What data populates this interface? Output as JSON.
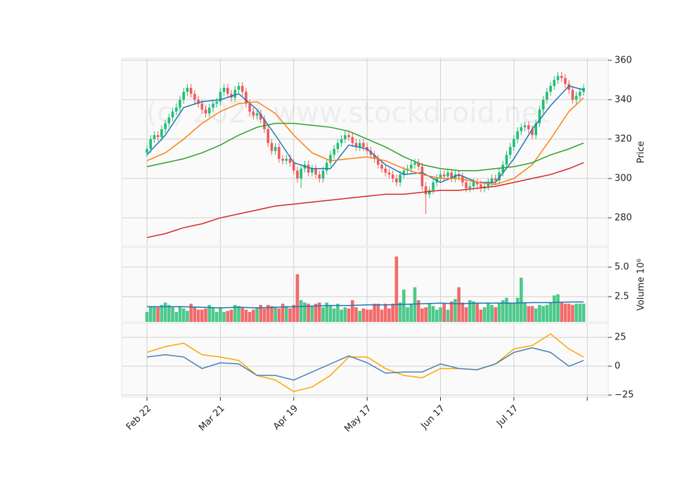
{
  "chart_data": [
    {
      "type": "candlestick",
      "ylabel": "Price",
      "watermark": "(c) 2024 www.stockdroid.net",
      "up_color": "#1fbf73",
      "down_color": "#f05a5a",
      "grid": true,
      "xlim": [
        -6.9,
        125.7
      ],
      "ylim": [
        265.7,
        361
      ],
      "yticks": [
        280,
        300,
        320,
        340,
        360
      ],
      "open": [
        313,
        315,
        320,
        322,
        321,
        325,
        328,
        331,
        334,
        336,
        340,
        344,
        346,
        343,
        340,
        338,
        335,
        333,
        336,
        338,
        339,
        344,
        346,
        343,
        341,
        345,
        347,
        344,
        338,
        334,
        332,
        333,
        330,
        325,
        318,
        314,
        316,
        310,
        309,
        310,
        308,
        304,
        300,
        305,
        307,
        303,
        305,
        302,
        300,
        304,
        308,
        312,
        315,
        318,
        320,
        322,
        321,
        318,
        316,
        318,
        316,
        314,
        312,
        310,
        307,
        305,
        303,
        302,
        300,
        298,
        302,
        304,
        305,
        307,
        308,
        306,
        296,
        292,
        294,
        298,
        300,
        302,
        301,
        303,
        300,
        302,
        301,
        298,
        295,
        296,
        298,
        297,
        295,
        296,
        298,
        300,
        299,
        303,
        307,
        312,
        316,
        320,
        324,
        326,
        327,
        325,
        322,
        328,
        335,
        340,
        344,
        347,
        350,
        352,
        351,
        348,
        345,
        340,
        342,
        344
      ],
      "high": [
        317,
        322,
        324,
        324,
        327,
        330,
        333,
        336,
        338,
        342,
        346,
        348,
        348,
        345,
        342,
        340,
        337,
        338,
        340,
        341,
        346,
        348,
        348,
        345,
        347,
        349,
        349,
        346,
        340,
        336,
        335,
        335,
        332,
        327,
        320,
        318,
        318,
        312,
        312,
        312,
        310,
        306,
        307,
        309,
        309,
        307,
        307,
        304,
        306,
        310,
        314,
        317,
        320,
        322,
        324,
        324,
        323,
        320,
        320,
        320,
        318,
        316,
        314,
        312,
        309,
        307,
        305,
        304,
        302,
        304,
        306,
        307,
        309,
        310,
        310,
        308,
        298,
        296,
        300,
        302,
        304,
        304,
        305,
        305,
        304,
        304,
        303,
        300,
        298,
        300,
        300,
        299,
        298,
        300,
        302,
        302,
        305,
        309,
        314,
        318,
        322,
        326,
        328,
        329,
        329,
        327,
        330,
        337,
        342,
        346,
        349,
        352,
        354,
        354,
        353,
        350,
        347,
        344,
        346,
        348
      ],
      "low": [
        311,
        313,
        318,
        319,
        319,
        323,
        326,
        329,
        332,
        334,
        338,
        342,
        341,
        338,
        336,
        333,
        331,
        331,
        334,
        336,
        337,
        342,
        341,
        339,
        339,
        343,
        342,
        336,
        332,
        330,
        330,
        328,
        323,
        316,
        312,
        312,
        308,
        307,
        307,
        306,
        302,
        298,
        295,
        303,
        301,
        301,
        300,
        298,
        298,
        302,
        306,
        310,
        313,
        316,
        318,
        319,
        316,
        314,
        314,
        314,
        312,
        310,
        308,
        305,
        303,
        301,
        300,
        298,
        296,
        296,
        300,
        302,
        303,
        305,
        304,
        294,
        282,
        290,
        292,
        296,
        298,
        299,
        299,
        298,
        298,
        299,
        296,
        293,
        293,
        294,
        295,
        293,
        293,
        294,
        296,
        297,
        297,
        301,
        305,
        310,
        314,
        318,
        322,
        324,
        323,
        320,
        320,
        326,
        333,
        338,
        342,
        345,
        348,
        349,
        346,
        343,
        338,
        338,
        340,
        342
      ],
      "close": [
        315,
        320,
        322,
        321,
        325,
        328,
        331,
        334,
        336,
        340,
        344,
        346,
        343,
        340,
        338,
        335,
        333,
        336,
        338,
        339,
        344,
        346,
        343,
        341,
        345,
        347,
        344,
        338,
        334,
        332,
        333,
        330,
        325,
        318,
        314,
        316,
        310,
        309,
        310,
        308,
        304,
        300,
        305,
        307,
        303,
        305,
        302,
        300,
        304,
        308,
        312,
        315,
        318,
        320,
        322,
        321,
        318,
        316,
        318,
        316,
        314,
        312,
        310,
        307,
        305,
        303,
        302,
        300,
        298,
        302,
        304,
        305,
        307,
        308,
        306,
        296,
        292,
        294,
        298,
        300,
        302,
        301,
        303,
        300,
        302,
        301,
        298,
        295,
        296,
        298,
        297,
        295,
        296,
        298,
        300,
        299,
        303,
        307,
        312,
        316,
        320,
        324,
        326,
        327,
        325,
        322,
        328,
        335,
        340,
        344,
        347,
        350,
        352,
        351,
        348,
        345,
        340,
        342,
        344,
        346
      ],
      "series": [
        {
          "color": "#1f77b4",
          "x": [
            0,
            5,
            10,
            15,
            20,
            25,
            30,
            35,
            40,
            45,
            50,
            55,
            60,
            65,
            70,
            75,
            80,
            85,
            90,
            95,
            100,
            105,
            110,
            115,
            119
          ],
          "values": [
            312,
            322,
            336,
            339,
            340,
            343,
            335,
            322,
            308,
            305,
            305,
            317,
            315,
            307,
            302,
            303,
            298,
            302,
            298,
            298,
            310,
            325,
            337,
            347,
            345
          ]
        },
        {
          "color": "#ff7f0e",
          "x": [
            0,
            5,
            10,
            15,
            20,
            25,
            30,
            35,
            40,
            45,
            50,
            55,
            60,
            65,
            70,
            75,
            80,
            85,
            90,
            95,
            100,
            105,
            110,
            115,
            119
          ],
          "values": [
            309,
            313,
            320,
            328,
            334,
            338,
            339,
            333,
            322,
            313,
            309,
            310,
            311,
            309,
            305,
            302,
            300,
            300,
            298,
            297,
            300,
            307,
            320,
            334,
            341
          ]
        },
        {
          "color": "#2ca02c",
          "x": [
            0,
            5,
            10,
            15,
            20,
            25,
            30,
            35,
            40,
            45,
            50,
            55,
            60,
            65,
            70,
            75,
            80,
            85,
            90,
            95,
            100,
            105,
            110,
            115,
            119
          ],
          "values": [
            306,
            308,
            310,
            313,
            317,
            322,
            326,
            328,
            328,
            327,
            326,
            324,
            320,
            316,
            311,
            307,
            305,
            304,
            304,
            305,
            306,
            308,
            312,
            315,
            318
          ]
        },
        {
          "color": "#d62728",
          "x": [
            0,
            5,
            10,
            15,
            20,
            25,
            30,
            35,
            40,
            45,
            50,
            55,
            60,
            65,
            70,
            75,
            80,
            85,
            90,
            95,
            100,
            105,
            110,
            115,
            119
          ],
          "values": [
            270,
            272,
            275,
            277,
            280,
            282,
            284,
            286,
            287,
            288,
            289,
            290,
            291,
            292,
            292,
            293,
            294,
            294,
            295,
            296,
            298,
            300,
            302,
            305,
            308
          ]
        }
      ]
    },
    {
      "type": "bar",
      "ylabel": "Volume  10⁶",
      "up_color": "#4cc98b",
      "down_color": "#f26b6b",
      "grid": true,
      "xlim": [
        -6.9,
        125.7
      ],
      "ylim": [
        0.36,
        6.67
      ],
      "yticks": [
        {
          "value": 2.5,
          "label": "2.5"
        },
        {
          "value": 5,
          "label": "5.0"
        }
      ],
      "values": [
        1.2,
        1.7,
        1.7,
        1.6,
        1.8,
        2.0,
        1.8,
        1.6,
        1.2,
        1.7,
        1.5,
        1.3,
        1.9,
        1.6,
        1.4,
        1.4,
        1.5,
        1.8,
        1.6,
        1.2,
        1.6,
        1.2,
        1.3,
        1.4,
        1.8,
        1.7,
        1.6,
        1.4,
        1.2,
        1.4,
        1.6,
        1.8,
        1.5,
        1.8,
        1.7,
        1.6,
        1.5,
        1.9,
        1.7,
        1.5,
        1.8,
        4.4,
        2.2,
        2.0,
        1.9,
        1.7,
        1.9,
        2.0,
        1.6,
        2.0,
        1.8,
        1.5,
        1.9,
        1.4,
        1.6,
        1.5,
        2.2,
        1.6,
        1.3,
        1.5,
        1.4,
        1.4,
        1.9,
        1.9,
        1.4,
        1.9,
        1.5,
        1.9,
        5.9,
        2.0,
        3.1,
        1.6,
        1.9,
        3.3,
        2.2,
        1.5,
        1.6,
        1.9,
        1.7,
        1.4,
        1.6,
        1.9,
        1.4,
        2.1,
        2.3,
        3.3,
        2.0,
        1.6,
        2.2,
        2.1,
        2.0,
        1.4,
        1.6,
        2.0,
        1.8,
        1.6,
        2.0,
        2.2,
        2.4,
        2.0,
        2.0,
        2.4,
        4.1,
        2.0,
        1.7,
        1.7,
        1.5,
        1.8,
        1.7,
        1.8,
        2.0,
        2.6,
        2.7,
        2.0,
        1.9,
        1.9,
        1.8,
        1.9,
        1.9,
        1.9
      ],
      "series": [
        {
          "color": "#1f77b4",
          "x": [
            0,
            5,
            10,
            15,
            20,
            25,
            30,
            35,
            40,
            45,
            50,
            55,
            60,
            65,
            70,
            75,
            80,
            85,
            90,
            95,
            100,
            105,
            110,
            115,
            119
          ],
          "values": [
            1.65,
            1.65,
            1.65,
            1.6,
            1.55,
            1.6,
            1.55,
            1.6,
            1.65,
            1.7,
            1.75,
            1.75,
            1.8,
            1.8,
            1.85,
            1.9,
            1.95,
            1.9,
            1.95,
            1.95,
            1.95,
            2.0,
            2.0,
            2.05,
            2.05
          ]
        }
      ]
    },
    {
      "type": "line",
      "grid": true,
      "xlim": [
        -6.9,
        125.7
      ],
      "ylim": [
        -26.8,
        37.2
      ],
      "yticks": [
        {
          "value": -25,
          "label": "−25"
        },
        0,
        25
      ],
      "xticks": [
        {
          "value": 0,
          "label": "Feb 22"
        },
        {
          "value": 20,
          "label": "Mar 21"
        },
        {
          "value": 40,
          "label": "Apr 19"
        },
        {
          "value": 60,
          "label": "May 17"
        },
        {
          "value": 80,
          "label": "Jun 17"
        },
        {
          "value": 100,
          "label": "Jul 17"
        },
        {
          "value": 120,
          "label": null
        }
      ],
      "series": [
        {
          "color": "#ffa500",
          "x": [
            0,
            5,
            10,
            15,
            20,
            25,
            30,
            35,
            40,
            45,
            50,
            55,
            60,
            65,
            70,
            75,
            80,
            85,
            90,
            95,
            100,
            105,
            110,
            115,
            119
          ],
          "values": [
            12,
            17,
            20,
            10,
            8,
            5,
            -8,
            -12,
            -22,
            -18,
            -8,
            8,
            8,
            -2,
            -8,
            -10,
            -2,
            -2,
            -3,
            2,
            15,
            18,
            28,
            15,
            8
          ]
        },
        {
          "color": "#4682b4",
          "x": [
            0,
            5,
            10,
            15,
            20,
            25,
            30,
            35,
            40,
            45,
            50,
            55,
            60,
            65,
            70,
            75,
            80,
            85,
            90,
            95,
            100,
            105,
            110,
            115,
            119
          ],
          "values": [
            8,
            10,
            8,
            -2,
            3,
            2,
            -8,
            -8,
            -12,
            -5,
            2,
            9,
            3,
            -6,
            -5,
            -5,
            2,
            -2,
            -3,
            2,
            12,
            16,
            12,
            0,
            5
          ]
        }
      ]
    }
  ]
}
